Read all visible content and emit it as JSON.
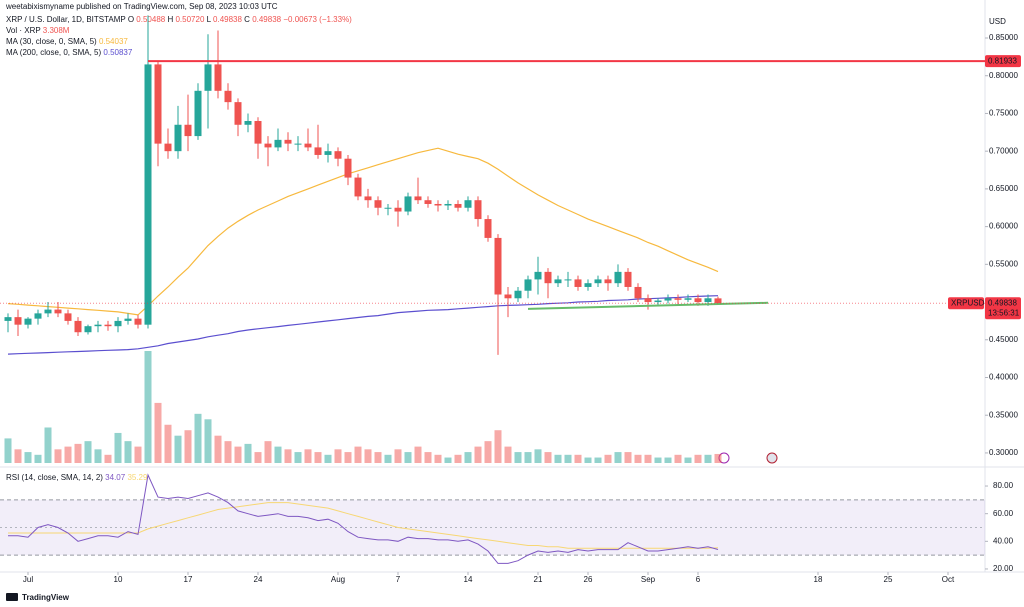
{
  "header": {
    "published": "weetabixismyname published on TradingView.com, Sep 08, 2023 10:03 UTC",
    "symbol": "XRP / U.S. Dollar, 1D, BITSTAMP",
    "ohlc": [
      {
        "key": "O",
        "value": "0.50488"
      },
      {
        "key": "H",
        "value": "0.50720"
      },
      {
        "key": "L",
        "value": "0.49838"
      },
      {
        "key": "C",
        "value": "0.49838"
      }
    ],
    "change": "−0.00673 (−1.33%)"
  },
  "footer": {
    "brand": "TradingView"
  },
  "chart_data": {
    "type": "candlestick",
    "axis_label": "USD",
    "up_color": "#26a69a",
    "down_color": "#ef5350",
    "xlim": [
      -0.8,
      97.7
    ],
    "xticks": [
      {
        "value": 2,
        "label": "Jul"
      },
      {
        "value": 11,
        "label": "10"
      },
      {
        "value": 18,
        "label": "17"
      },
      {
        "value": 25,
        "label": "24"
      },
      {
        "value": 33,
        "label": "Aug"
      },
      {
        "value": 39,
        "label": "7"
      },
      {
        "value": 46,
        "label": "14"
      },
      {
        "value": 53,
        "label": "21"
      },
      {
        "value": 58,
        "label": "26"
      },
      {
        "value": 64,
        "label": "Sep"
      },
      {
        "value": 69,
        "label": "6"
      },
      {
        "value": 81,
        "label": "18"
      },
      {
        "value": 88,
        "label": "25"
      },
      {
        "value": 94,
        "label": "Oct"
      }
    ],
    "ylim": [
      0.284,
      0.8805
    ],
    "yticks": [
      {
        "value": 0.3,
        "label": "0.30000"
      },
      {
        "value": 0.35,
        "label": "0.35000"
      },
      {
        "value": 0.4,
        "label": "0.40000"
      },
      {
        "value": 0.45,
        "label": "0.45000"
      },
      {
        "value": 0.5,
        "label": "0.50000"
      },
      {
        "value": 0.55,
        "label": "0.55000"
      },
      {
        "value": 0.6,
        "label": "0.60000"
      },
      {
        "value": 0.65,
        "label": "0.65000"
      },
      {
        "value": 0.7,
        "label": "0.70000"
      },
      {
        "value": 0.75,
        "label": "0.75000"
      },
      {
        "value": 0.8,
        "label": "0.80000"
      },
      {
        "value": 0.85,
        "label": "0.85000"
      }
    ],
    "open": [
      0.475,
      0.48,
      0.47,
      0.478,
      0.485,
      0.49,
      0.485,
      0.475,
      0.46,
      0.468,
      0.47,
      0.468,
      0.475,
      0.478,
      0.47,
      0.815,
      0.71,
      0.7,
      0.735,
      0.72,
      0.78,
      0.815,
      0.78,
      0.765,
      0.735,
      0.74,
      0.71,
      0.705,
      0.715,
      0.71,
      0.71,
      0.705,
      0.695,
      0.7,
      0.69,
      0.665,
      0.64,
      0.635,
      0.625,
      0.625,
      0.62,
      0.64,
      0.635,
      0.63,
      0.628,
      0.63,
      0.625,
      0.635,
      0.61,
      0.585,
      0.51,
      0.505,
      0.515,
      0.53,
      0.54,
      0.525,
      0.53,
      0.53,
      0.52,
      0.525,
      0.53,
      0.525,
      0.54,
      0.52,
      0.505,
      0.5,
      0.502,
      0.505,
      0.503,
      0.505,
      0.5,
      0.50488
    ],
    "high": [
      0.485,
      0.49,
      0.48,
      0.49,
      0.5,
      0.5,
      0.49,
      0.48,
      0.47,
      0.475,
      0.475,
      0.48,
      0.485,
      0.483,
      0.88,
      0.82,
      0.73,
      0.76,
      0.775,
      0.79,
      0.855,
      0.86,
      0.79,
      0.77,
      0.75,
      0.745,
      0.72,
      0.73,
      0.725,
      0.72,
      0.73,
      0.735,
      0.71,
      0.705,
      0.695,
      0.67,
      0.65,
      0.64,
      0.63,
      0.635,
      0.645,
      0.665,
      0.64,
      0.635,
      0.635,
      0.635,
      0.64,
      0.64,
      0.615,
      0.59,
      0.52,
      0.52,
      0.535,
      0.56,
      0.545,
      0.535,
      0.54,
      0.535,
      0.53,
      0.535,
      0.535,
      0.55,
      0.545,
      0.525,
      0.51,
      0.505,
      0.51,
      0.51,
      0.51,
      0.51,
      0.51,
      0.5072
    ],
    "low": [
      0.46,
      0.455,
      0.465,
      0.47,
      0.48,
      0.48,
      0.47,
      0.455,
      0.457,
      0.46,
      0.462,
      0.46,
      0.47,
      0.465,
      0.465,
      0.68,
      0.69,
      0.69,
      0.7,
      0.715,
      0.73,
      0.77,
      0.755,
      0.72,
      0.725,
      0.69,
      0.68,
      0.7,
      0.7,
      0.7,
      0.7,
      0.69,
      0.685,
      0.68,
      0.655,
      0.635,
      0.625,
      0.615,
      0.615,
      0.6,
      0.615,
      0.63,
      0.625,
      0.62,
      0.622,
      0.62,
      0.62,
      0.6,
      0.58,
      0.43,
      0.48,
      0.5,
      0.505,
      0.51,
      0.505,
      0.52,
      0.52,
      0.515,
      0.515,
      0.52,
      0.515,
      0.52,
      0.515,
      0.5,
      0.49,
      0.495,
      0.498,
      0.495,
      0.5,
      0.495,
      0.495,
      0.49838
    ],
    "close": [
      0.48,
      0.47,
      0.478,
      0.485,
      0.49,
      0.485,
      0.475,
      0.46,
      0.468,
      0.47,
      0.468,
      0.475,
      0.478,
      0.47,
      0.815,
      0.71,
      0.7,
      0.735,
      0.72,
      0.78,
      0.815,
      0.78,
      0.765,
      0.735,
      0.74,
      0.71,
      0.705,
      0.715,
      0.71,
      0.71,
      0.705,
      0.695,
      0.7,
      0.69,
      0.665,
      0.64,
      0.635,
      0.625,
      0.625,
      0.62,
      0.64,
      0.635,
      0.63,
      0.628,
      0.63,
      0.625,
      0.635,
      0.61,
      0.585,
      0.51,
      0.505,
      0.515,
      0.53,
      0.54,
      0.525,
      0.53,
      0.53,
      0.52,
      0.525,
      0.53,
      0.525,
      0.54,
      0.52,
      0.505,
      0.5,
      0.502,
      0.505,
      0.503,
      0.505,
      0.5,
      0.505,
      0.49838
    ],
    "volume": {
      "name": "Vol · XRP",
      "value_label": "3.308M",
      "values": [
        9,
        5,
        4,
        3,
        13,
        5,
        6,
        7,
        8,
        5,
        3,
        11,
        8,
        6,
        41,
        22,
        14,
        10,
        12,
        18,
        16,
        10,
        8,
        6,
        7,
        4,
        8,
        6,
        5,
        4,
        5,
        4,
        3,
        5,
        4,
        6,
        5,
        4,
        3,
        5,
        4,
        6,
        4,
        3,
        2,
        3,
        4,
        6,
        8,
        12,
        6,
        4,
        4,
        5,
        4,
        3,
        3,
        3,
        2,
        2,
        3,
        4,
        4,
        3,
        3,
        2,
        2,
        3,
        2,
        3,
        3,
        3.308
      ]
    },
    "overlays": [
      {
        "name": "MA (30, close, 0, SMA, 5)",
        "value_label": "0.54037",
        "color": "#f7b93e",
        "values": [
          0.498,
          0.497,
          0.496,
          0.495,
          0.494,
          0.493,
          0.492,
          0.491,
          0.49,
          0.489,
          0.488,
          0.487,
          0.485,
          0.483,
          0.495,
          0.508,
          0.52,
          0.533,
          0.545,
          0.56,
          0.575,
          0.587,
          0.598,
          0.607,
          0.615,
          0.622,
          0.628,
          0.634,
          0.64,
          0.645,
          0.65,
          0.655,
          0.66,
          0.665,
          0.67,
          0.674,
          0.678,
          0.682,
          0.686,
          0.69,
          0.694,
          0.698,
          0.701,
          0.704,
          0.7,
          0.696,
          0.693,
          0.69,
          0.684,
          0.676,
          0.667,
          0.658,
          0.65,
          0.642,
          0.635,
          0.628,
          0.622,
          0.616,
          0.61,
          0.605,
          0.6,
          0.595,
          0.59,
          0.585,
          0.579,
          0.574,
          0.568,
          0.562,
          0.556,
          0.551,
          0.546,
          0.54037
        ]
      },
      {
        "name": "MA (200, close, 0, SMA, 5)",
        "value_label": "0.50837",
        "color": "#5b4fcf",
        "values": [
          0.431,
          0.4315,
          0.432,
          0.4325,
          0.433,
          0.4335,
          0.434,
          0.4345,
          0.435,
          0.4355,
          0.436,
          0.4365,
          0.437,
          0.438,
          0.44,
          0.442,
          0.445,
          0.447,
          0.449,
          0.451,
          0.454,
          0.456,
          0.458,
          0.461,
          0.463,
          0.4645,
          0.466,
          0.4675,
          0.469,
          0.4705,
          0.472,
          0.4735,
          0.475,
          0.4765,
          0.478,
          0.4795,
          0.481,
          0.482,
          0.484,
          0.486,
          0.487,
          0.488,
          0.489,
          0.4895,
          0.49,
          0.491,
          0.492,
          0.493,
          0.494,
          0.495,
          0.4955,
          0.496,
          0.4965,
          0.497,
          0.498,
          0.4985,
          0.499,
          0.5,
          0.5005,
          0.501,
          0.502,
          0.5025,
          0.503,
          0.504,
          0.5045,
          0.505,
          0.5055,
          0.506,
          0.507,
          0.5075,
          0.508,
          0.50837
        ]
      }
    ],
    "hlines": [
      {
        "value": 0.81933,
        "label": "0.81933",
        "color": "#f23645"
      }
    ],
    "trendline": {
      "color": "#66bb6a",
      "x": [
        52,
        76
      ],
      "values": [
        0.491,
        0.499
      ]
    },
    "price_tag": {
      "symbol": "XRPUSD",
      "label": "0.49838",
      "value": 0.49838,
      "countdown": "13:56:31",
      "color": "#f23645"
    },
    "rsi": {
      "name": "RSI (14, close, SMA, 14, 2)",
      "value_label": "34.07",
      "color": "#7e57c2",
      "values": [
        44,
        44,
        43,
        50,
        52,
        50,
        46,
        40,
        42,
        44,
        44,
        43,
        47,
        45,
        88,
        72,
        71,
        72,
        71,
        73,
        75,
        72,
        68,
        62,
        60,
        58,
        59,
        60,
        58,
        58,
        57,
        55,
        56,
        53,
        47,
        43,
        42,
        41,
        41,
        40,
        43,
        42,
        42,
        41,
        41,
        40,
        41,
        38,
        33,
        24,
        24,
        26,
        30,
        33,
        32,
        33,
        32,
        34,
        33,
        34,
        34,
        34,
        39,
        36,
        33,
        33,
        34,
        35,
        36,
        35,
        36,
        34.07
      ],
      "ma_label": "35.29",
      "ma_color": "#f7d774",
      "ma_values": [
        46,
        46,
        46,
        46,
        46,
        46,
        46,
        46,
        46,
        46,
        46,
        46,
        46,
        46,
        49,
        51,
        53,
        55,
        57,
        59,
        61,
        63,
        64,
        65,
        66,
        67,
        68,
        68,
        68,
        67,
        66,
        65,
        64,
        62,
        60,
        58,
        56,
        54,
        52,
        50,
        49,
        48,
        47,
        46,
        45,
        44,
        43,
        42,
        41,
        40,
        39,
        38,
        37,
        37,
        36,
        36,
        35,
        35,
        35,
        35,
        35,
        35,
        35,
        35,
        35,
        35,
        35,
        35,
        35,
        35,
        35,
        35.29
      ],
      "ylim": [
        17.8,
        91.6
      ],
      "yticks": [
        {
          "value": 20,
          "label": "20.00"
        },
        {
          "value": 40,
          "label": "40.00"
        },
        {
          "value": 60,
          "label": "60.00"
        },
        {
          "value": 80,
          "label": "80.00"
        }
      ],
      "band": [
        30,
        70
      ],
      "middle": 50
    }
  }
}
